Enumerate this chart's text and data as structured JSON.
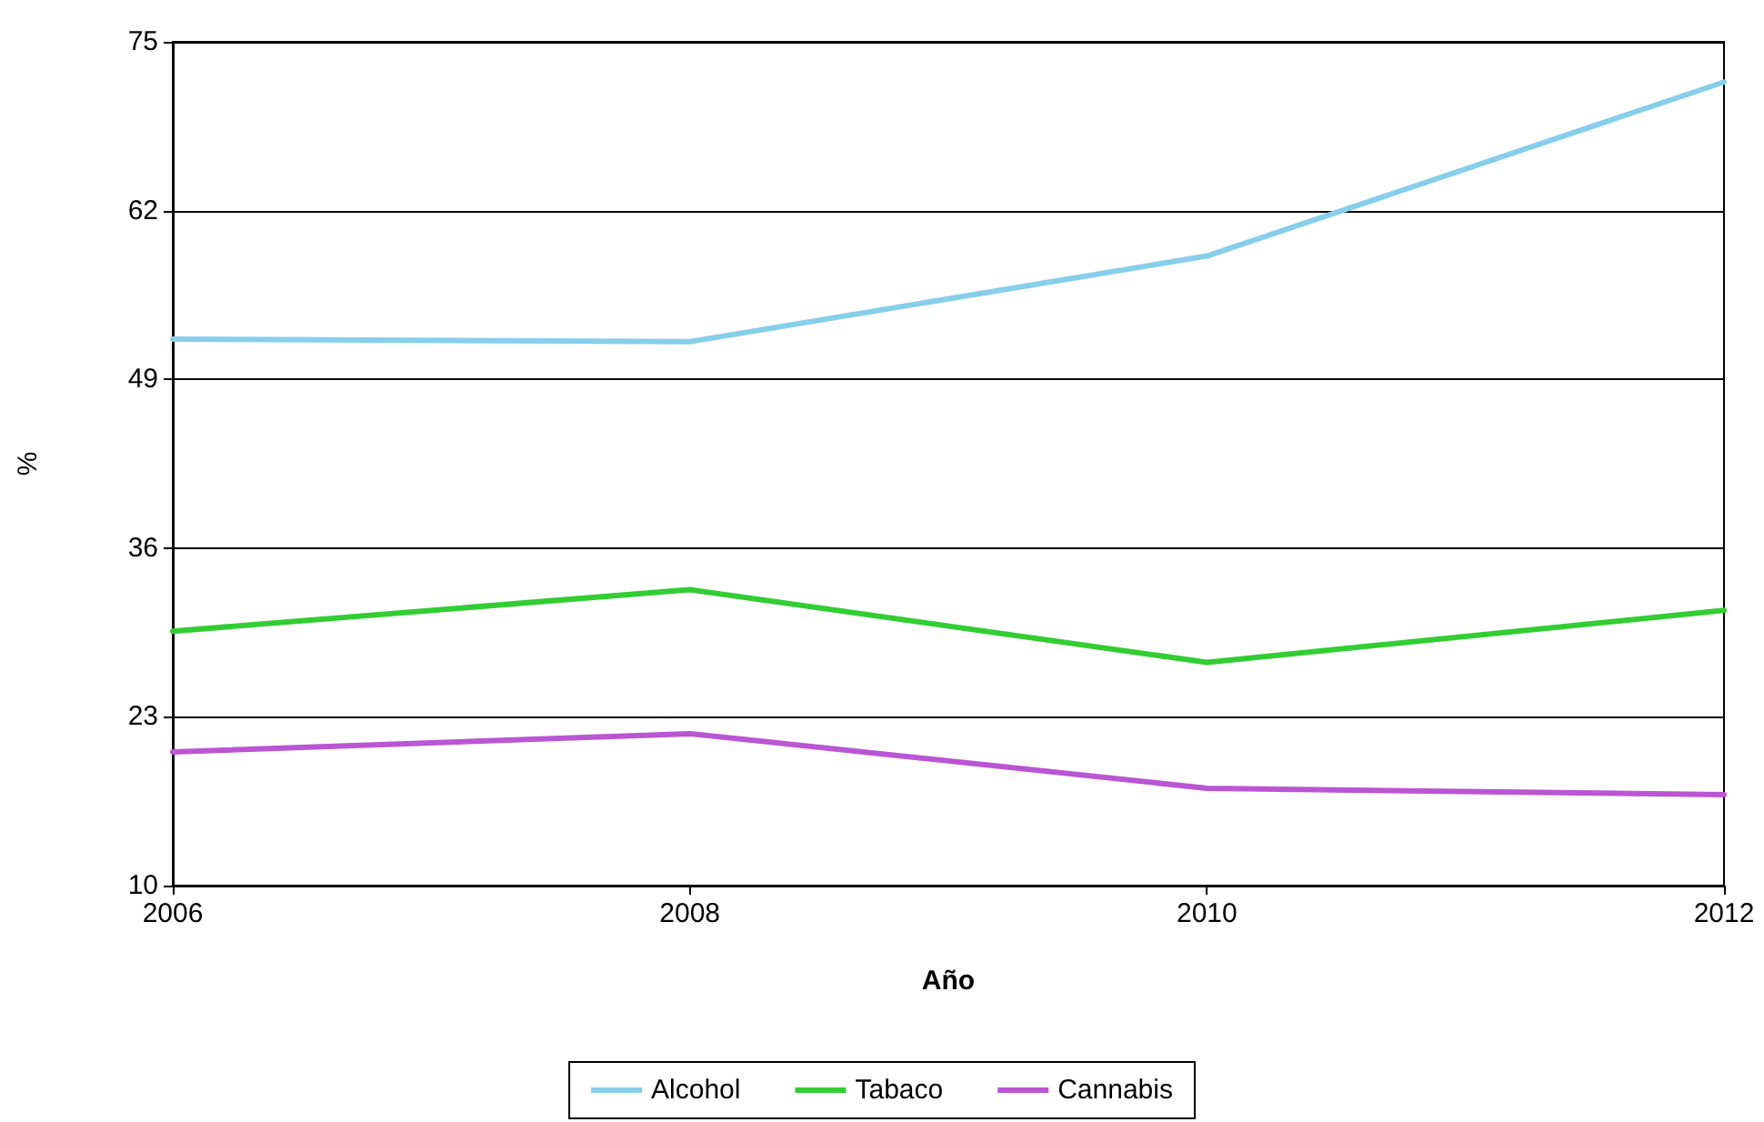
{
  "chart_data": {
    "type": "line",
    "xlabel": "Año",
    "ylabel": "%",
    "x": [
      2006,
      2008,
      2010,
      2012
    ],
    "series": [
      {
        "name": "Alcohol",
        "color": "#87ceeb",
        "values": [
          52.1,
          51.9,
          58.5,
          71.9
        ]
      },
      {
        "name": "Tabaco",
        "color": "#32cd32",
        "values": [
          29.6,
          32.8,
          27.2,
          31.2
        ]
      },
      {
        "name": "Cannabis",
        "color": "#ba55d3",
        "values": [
          20.3,
          21.7,
          17.5,
          17.0
        ]
      }
    ],
    "xlim": [
      2006,
      2012
    ],
    "xticks": [
      2006,
      2008,
      2010,
      2012
    ],
    "ylim": [
      10,
      75
    ],
    "yticks": [
      10,
      23,
      36,
      49,
      62,
      75
    ],
    "grid": "y",
    "legend": "bottom",
    "marker": "none",
    "line_style": "solid"
  }
}
